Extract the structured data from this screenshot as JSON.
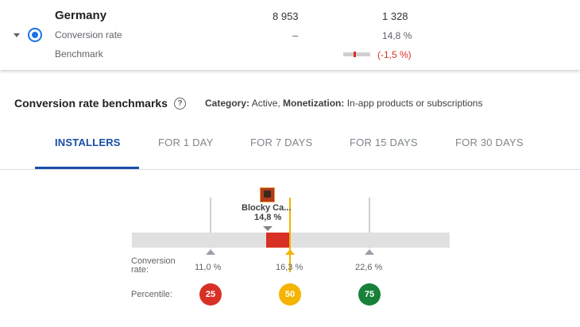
{
  "summary": {
    "country": "Germany",
    "col1_value": "8 953",
    "col2_value": "1 328",
    "conversion_label": "Conversion rate",
    "conversion_col1": "–",
    "conversion_col2": "14,8 %",
    "benchmark_label": "Benchmark",
    "benchmark_value": "(-1,5 %)"
  },
  "section": {
    "title": "Conversion rate benchmarks",
    "help_icon": "?",
    "category_label": "Category:",
    "category_value": "Active,",
    "monetization_label": "Monetization:",
    "monetization_value": "In-app products or subscriptions"
  },
  "tabs": [
    {
      "label": "INSTALLERS",
      "active": true
    },
    {
      "label": "FOR 1 DAY"
    },
    {
      "label": "FOR 7 DAYS"
    },
    {
      "label": "FOR 15 DAYS"
    },
    {
      "label": "FOR 30 DAYS"
    }
  ],
  "benchmark_chart": {
    "app_name": "Blocky Ca...",
    "app_value": "14,8 %",
    "row_label_conversion": "Conversion rate:",
    "row_label_percentile": "Percentile:",
    "percentiles": [
      {
        "label": "11,0 %",
        "percentile": "25",
        "color": "#d93025"
      },
      {
        "label": "16,3 %",
        "percentile": "50",
        "color": "#f4b400"
      },
      {
        "label": "22,6 %",
        "percentile": "75",
        "color": "#188038"
      }
    ]
  }
}
